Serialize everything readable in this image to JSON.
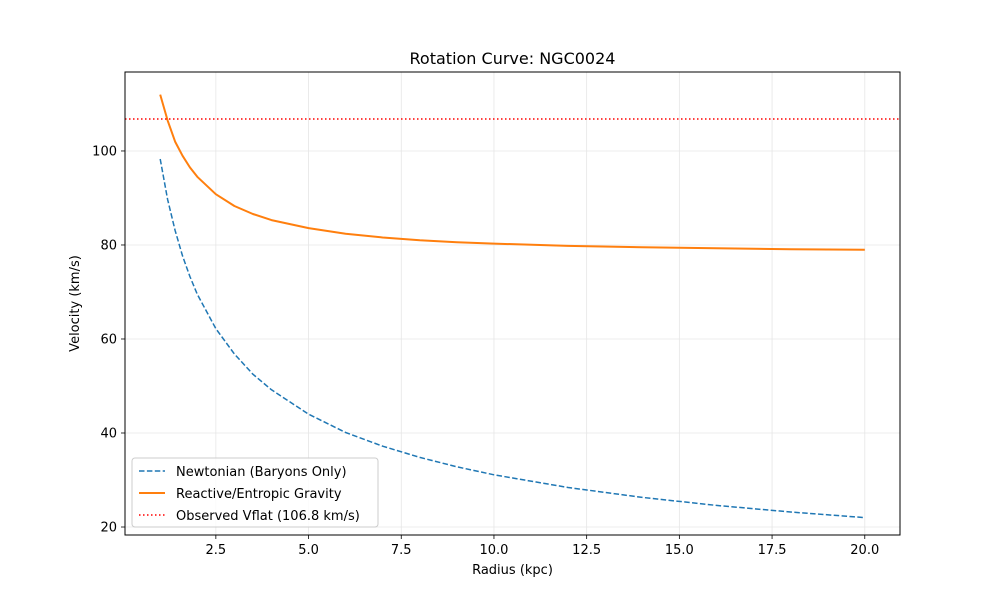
{
  "chart_data": {
    "type": "line",
    "title": "Rotation Curve: NGC0024",
    "xlabel": "Radius (kpc)",
    "ylabel": "Velocity (km/s)",
    "xlim": [
      0.05,
      20.95
    ],
    "ylim": [
      18.3,
      116.8
    ],
    "xticks": [
      {
        "value": 2.5,
        "label": "2.5"
      },
      {
        "value": 5.0,
        "label": "5.0"
      },
      {
        "value": 7.5,
        "label": "7.5"
      },
      {
        "value": 10.0,
        "label": "10.0"
      },
      {
        "value": 12.5,
        "label": "12.5"
      },
      {
        "value": 15.0,
        "label": "15.0"
      },
      {
        "value": 17.5,
        "label": "17.5"
      },
      {
        "value": 20.0,
        "label": "20.0"
      }
    ],
    "yticks": [
      {
        "value": 20,
        "label": "20"
      },
      {
        "value": 40,
        "label": "40"
      },
      {
        "value": 60,
        "label": "60"
      },
      {
        "value": 80,
        "label": "80"
      },
      {
        "value": 100,
        "label": "100"
      }
    ],
    "grid": true,
    "legend_position": "lower-left",
    "series": [
      {
        "name": "Newtonian (Baryons Only)",
        "color": "#1f77b4",
        "style": "dashed",
        "x": [
          1.0,
          1.2,
          1.4,
          1.6,
          1.8,
          2.0,
          2.5,
          3.0,
          3.5,
          4.0,
          5.0,
          6.0,
          7.0,
          8.0,
          9.0,
          10.0,
          12.0,
          14.0,
          16.0,
          18.0,
          20.0
        ],
        "y": [
          98.3,
          89.7,
          83.1,
          77.7,
          73.3,
          69.5,
          62.2,
          56.8,
          52.5,
          49.2,
          44.0,
          40.1,
          37.2,
          34.8,
          32.8,
          31.1,
          28.4,
          26.3,
          24.6,
          23.2,
          22.0
        ]
      },
      {
        "name": "Reactive/Entropic Gravity",
        "color": "#ff7f0e",
        "style": "solid",
        "x": [
          1.0,
          1.2,
          1.4,
          1.6,
          1.8,
          2.0,
          2.5,
          3.0,
          3.5,
          4.0,
          5.0,
          6.0,
          7.0,
          8.0,
          9.0,
          10.0,
          12.0,
          14.0,
          16.0,
          18.0,
          20.0
        ],
        "y": [
          112.0,
          106.5,
          102.0,
          99.0,
          96.5,
          94.5,
          90.8,
          88.3,
          86.6,
          85.3,
          83.6,
          82.4,
          81.6,
          81.0,
          80.6,
          80.3,
          79.8,
          79.5,
          79.3,
          79.1,
          79.0
        ]
      },
      {
        "name": "Observed Vflat (106.8 km/s)",
        "color": "#ff0000",
        "style": "dotted",
        "hline": 106.8
      }
    ]
  }
}
